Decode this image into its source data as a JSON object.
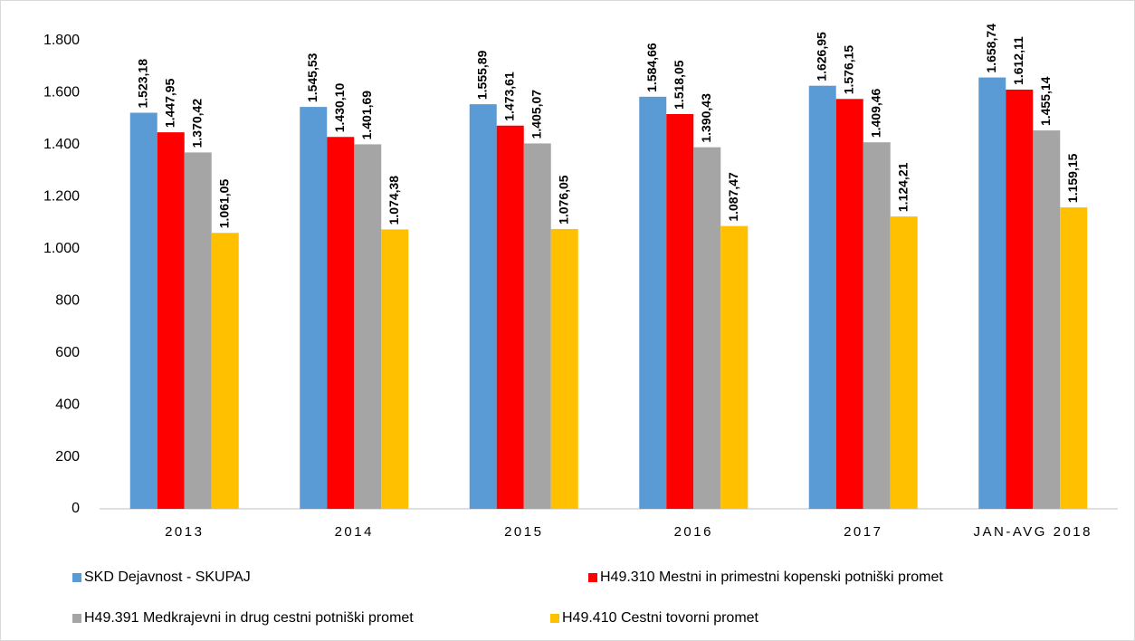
{
  "chart_data": {
    "type": "bar",
    "categories": [
      "2013",
      "2014",
      "2015",
      "2016",
      "2017",
      "JAN-AVG 2018"
    ],
    "series": [
      {
        "name": "SKD Dejavnost - SKUPAJ",
        "color": "#5b9bd5",
        "values": [
          1523.18,
          1545.53,
          1555.89,
          1584.66,
          1626.95,
          1658.74
        ],
        "value_labels": [
          "1.523,18",
          "1.545,53",
          "1.555,89",
          "1.584,66",
          "1.626,95",
          "1.658,74"
        ]
      },
      {
        "name": "H49.310 Mestni in primestni kopenski potniški promet",
        "color": "#ff0000",
        "values": [
          1447.95,
          1430.1,
          1473.61,
          1518.05,
          1576.15,
          1612.11
        ],
        "value_labels": [
          "1.447,95",
          "1.430,10",
          "1.473,61",
          "1.518,05",
          "1.576,15",
          "1.612,11"
        ]
      },
      {
        "name": "H49.391 Medkrajevni in drug cestni potniški promet",
        "color": "#a5a5a5",
        "values": [
          1370.42,
          1401.69,
          1405.07,
          1390.43,
          1409.46,
          1455.14
        ],
        "value_labels": [
          "1.370,42",
          "1.401,69",
          "1.405,07",
          "1.390,43",
          "1.409,46",
          "1.455,14"
        ]
      },
      {
        "name": "H49.410 Cestni tovorni promet",
        "color": "#ffc000",
        "values": [
          1061.05,
          1074.38,
          1076.05,
          1087.47,
          1124.21,
          1159.15
        ],
        "value_labels": [
          "1.061,05",
          "1.074,38",
          "1.076,05",
          "1.087,47",
          "1.124,21",
          "1.159,15"
        ]
      }
    ],
    "ylim": [
      0,
      1800
    ],
    "yticks": [
      0,
      200,
      400,
      600,
      800,
      {
        "value": 1000,
        "label": "1.000"
      },
      {
        "value": 1200,
        "label": "1.200"
      },
      {
        "value": 1400,
        "label": "1.400"
      },
      {
        "value": 1600,
        "label": "1.600"
      },
      {
        "value": 1800,
        "label": "1.800"
      }
    ],
    "grid": false,
    "legend": "bottom"
  }
}
